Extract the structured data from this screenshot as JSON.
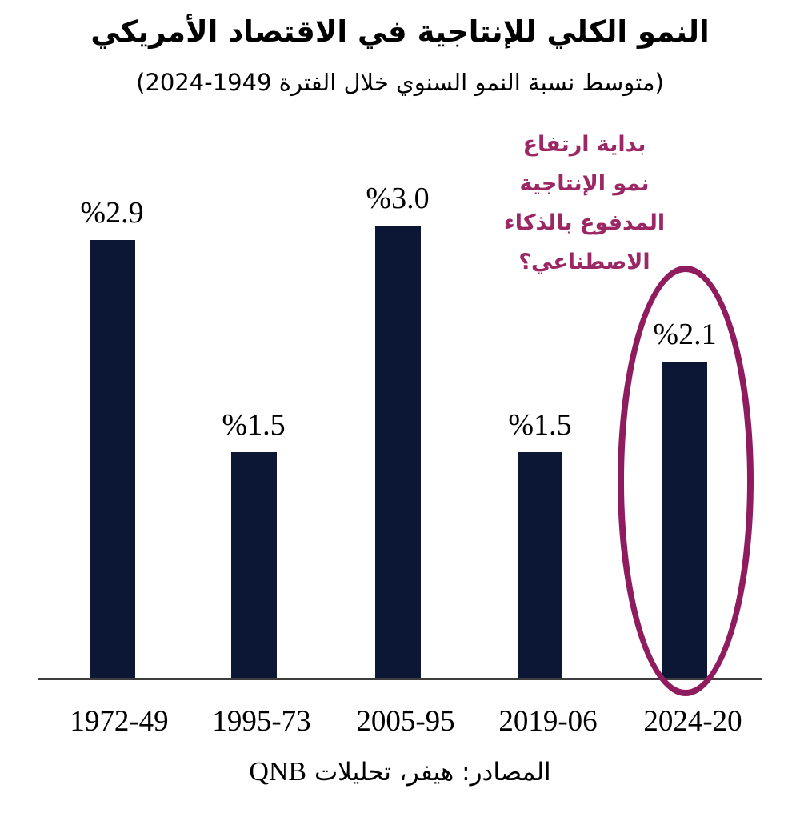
{
  "header": {
    "title": "النمو الكلي للإنتاجية في الاقتصاد الأمريكي",
    "subtitle": "(متوسط نسبة النمو السنوي خلال الفترة 1949-2024)"
  },
  "annotation": {
    "color": "#9c2765",
    "lines": [
      "بداية ارتفاع",
      "نمو الإنتاجية",
      "المدفوع بالذكاء",
      "الاصطناعي؟"
    ]
  },
  "chart_data": {
    "type": "bar",
    "title": "النمو الكلي للإنتاجية في الاقتصاد الأمريكي",
    "subtitle": "(متوسط نسبة النمو السنوي خلال الفترة 1949-2024)",
    "categories": [
      "1972-49",
      "1995-73",
      "2005-95",
      "2019-06",
      "2024-20"
    ],
    "values": [
      2.9,
      1.5,
      3.0,
      1.5,
      2.1
    ],
    "value_labels": [
      "%2.9",
      "%1.5",
      "%3.0",
      "%1.5",
      "%2.1"
    ],
    "unit": "%",
    "ylim": [
      0,
      3.2
    ],
    "grid": false,
    "legend": false,
    "bar_color": "#0c1635",
    "axis_color": "#3d3d3d",
    "highlight": {
      "category": "2024-20",
      "shape": "ellipse",
      "color": "#8e1c5e"
    }
  },
  "source": {
    "label_ar": "المصادر: هيفر، تحليلات",
    "brand": "QNB"
  }
}
